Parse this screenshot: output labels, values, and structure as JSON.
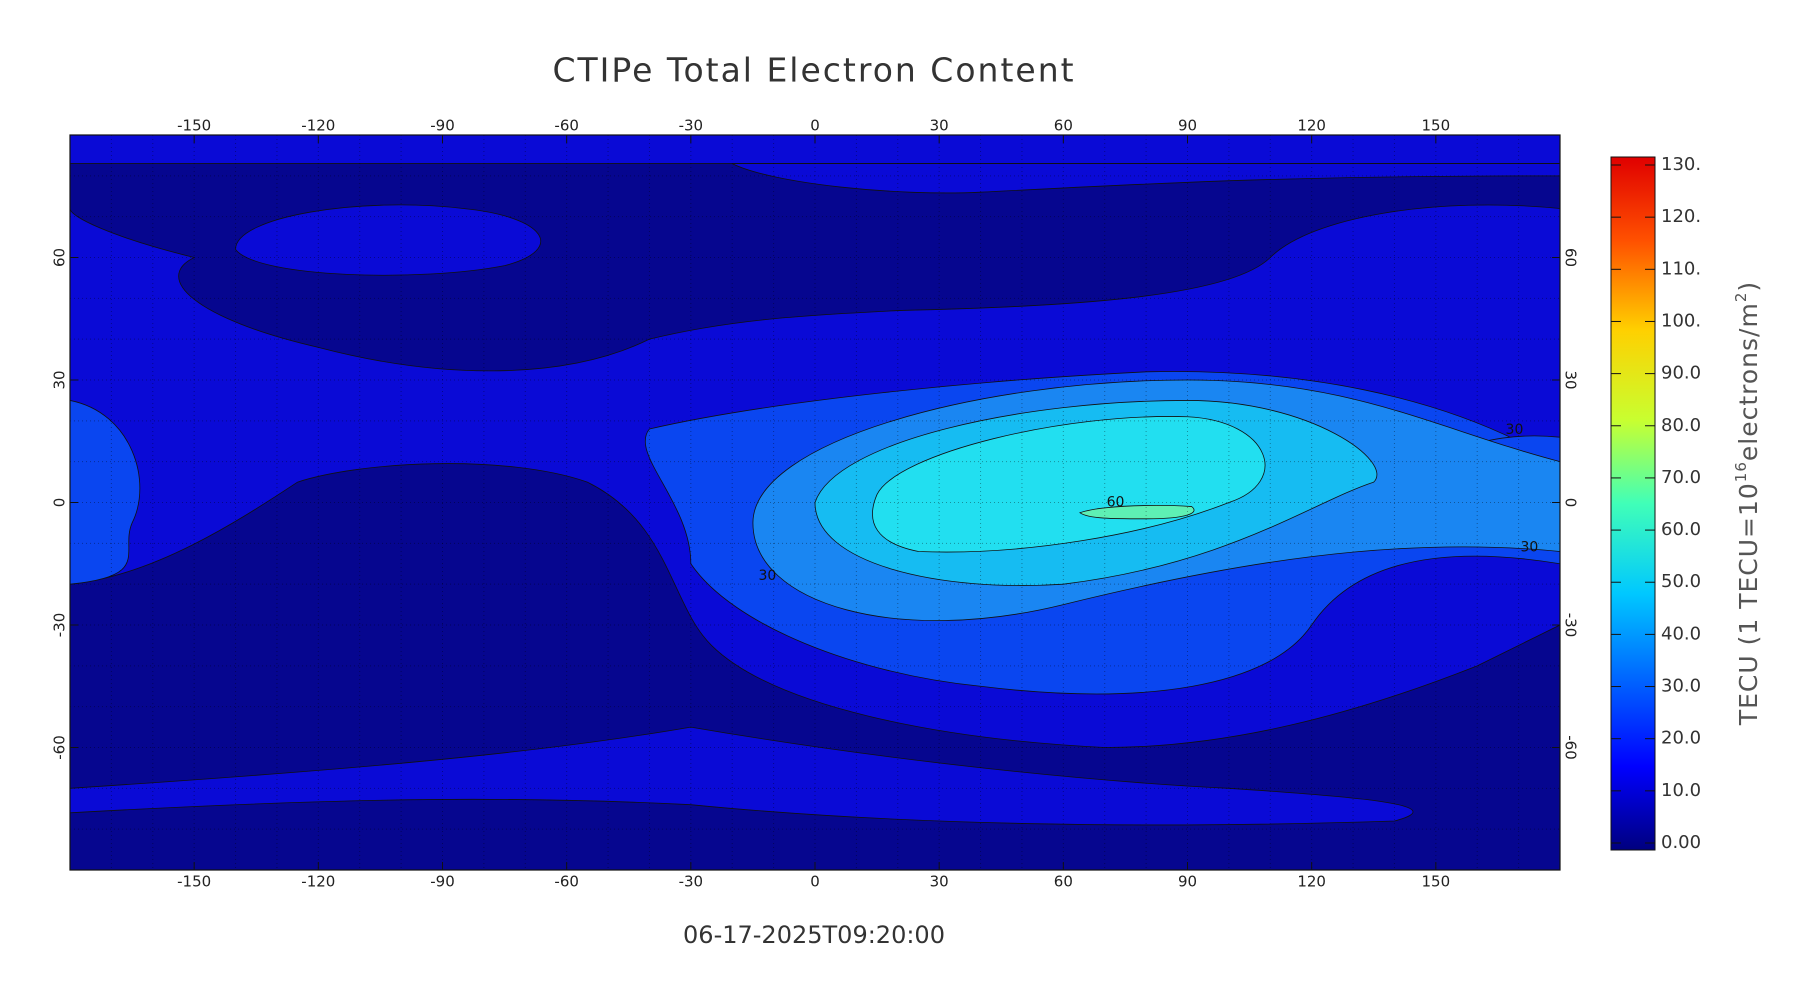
{
  "map": {
    "title": "CTIPe Total Electron Content",
    "timestamp": "06-17-2025T09:20:00",
    "xlim": [
      -180,
      180
    ],
    "ylim": [
      -90,
      90
    ],
    "xticks": [
      -150,
      -120,
      -90,
      -60,
      -30,
      0,
      30,
      60,
      90,
      120,
      150
    ],
    "yticks": [
      -60,
      -30,
      0,
      30,
      60
    ],
    "contour_labels": [
      "30",
      "60",
      "30",
      "30"
    ]
  },
  "colorbar": {
    "label": [
      "TECU (1 TECU=10",
      "16",
      "electrons/m",
      "2",
      ")"
    ],
    "ticks": [
      {
        "value": 130,
        "label": "130."
      },
      {
        "value": 120,
        "label": "120."
      },
      {
        "value": 110,
        "label": "110."
      },
      {
        "value": 100,
        "label": "100."
      },
      {
        "value": 90,
        "label": "90.0"
      },
      {
        "value": 80,
        "label": "80.0"
      },
      {
        "value": 70,
        "label": "70.0"
      },
      {
        "value": 60,
        "label": "60.0"
      },
      {
        "value": 50,
        "label": "50.0"
      },
      {
        "value": 40,
        "label": "40.0"
      },
      {
        "value": 30,
        "label": "30.0"
      },
      {
        "value": 20,
        "label": "20.0"
      },
      {
        "value": 10,
        "label": "10.0"
      },
      {
        "value": 0,
        "label": "0.00"
      }
    ]
  }
}
